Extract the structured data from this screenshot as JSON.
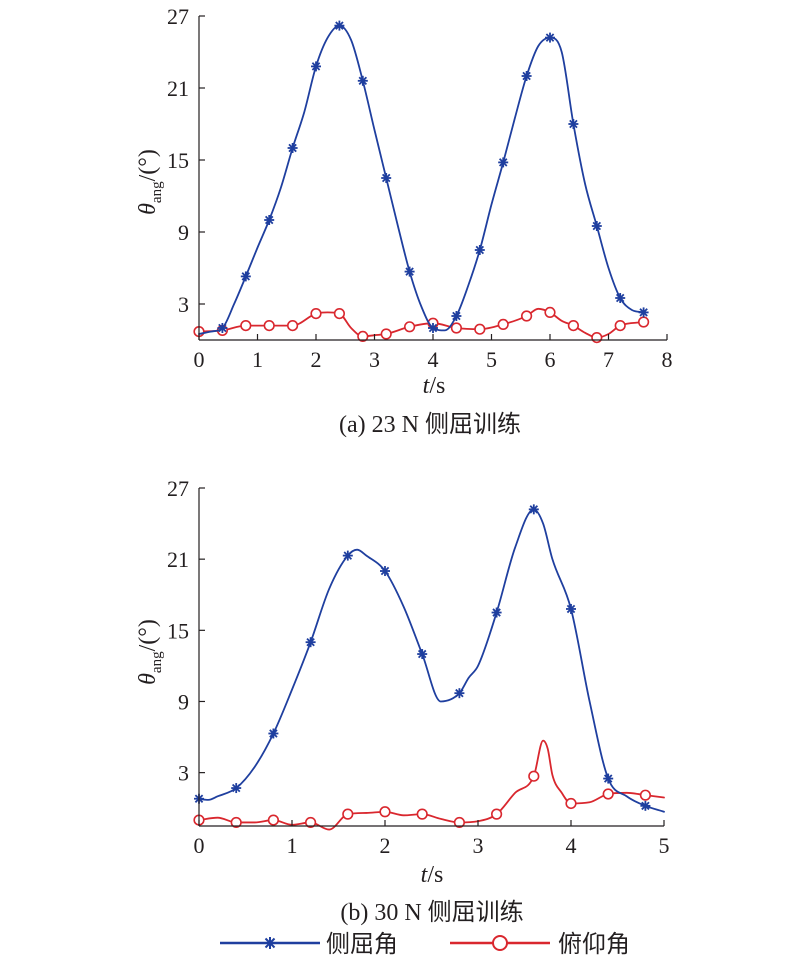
{
  "chart_data": [
    {
      "type": "line",
      "caption": "(a) 23 N 侧屈训练",
      "xlabel": "t",
      "xunit": "/s",
      "ylabel_symbol": "θ",
      "ylabel_sub": "ang",
      "ylabel_unit": "/(°)",
      "xlim": [
        0,
        8
      ],
      "ylim": [
        0,
        27
      ],
      "xticks": [
        0,
        1,
        2,
        3,
        4,
        5,
        6,
        7,
        8
      ],
      "yticks": [
        3,
        9,
        15,
        21,
        27
      ],
      "grid": false,
      "series": [
        {
          "name": "侧屈角",
          "color": "#1f3f9f",
          "marker": "asterisk",
          "x": [
            0,
            0.2,
            0.4,
            0.6,
            0.8,
            1.0,
            1.2,
            1.4,
            1.6,
            1.8,
            2.0,
            2.2,
            2.4,
            2.6,
            2.8,
            3.0,
            3.2,
            3.4,
            3.6,
            3.8,
            4.0,
            4.2,
            4.4,
            4.6,
            4.8,
            5.0,
            5.2,
            5.4,
            5.6,
            5.8,
            6.0,
            6.2,
            6.4,
            6.6,
            6.8,
            7.0,
            7.2,
            7.4,
            7.6
          ],
          "y": [
            0.5,
            0.7,
            1.0,
            3.0,
            5.3,
            7.7,
            10.0,
            12.7,
            16.0,
            19.0,
            22.8,
            25.2,
            26.2,
            25.0,
            21.6,
            17.5,
            13.5,
            9.5,
            5.7,
            2.8,
            1.0,
            0.8,
            2.0,
            4.5,
            7.5,
            11.3,
            14.8,
            18.5,
            22.0,
            24.5,
            25.2,
            24.0,
            18.0,
            13.0,
            9.5,
            6.0,
            3.5,
            2.5,
            2.3
          ],
          "marker_x": [
            0.4,
            0.8,
            1.2,
            1.6,
            2.0,
            2.4,
            2.8,
            3.2,
            3.6,
            4.0,
            4.4,
            4.8,
            5.2,
            5.6,
            6.0,
            6.4,
            6.8,
            7.2,
            7.6
          ],
          "marker_y": [
            1.0,
            5.3,
            10.0,
            16.0,
            22.8,
            26.2,
            21.6,
            13.5,
            5.7,
            1.0,
            2.0,
            7.5,
            14.8,
            22.0,
            25.2,
            18.0,
            9.5,
            3.5,
            2.3
          ]
        },
        {
          "name": "俯仰角",
          "color": "#d9272e",
          "marker": "circle",
          "x": [
            0,
            0.4,
            0.8,
            1.2,
            1.6,
            2.0,
            2.2,
            2.4,
            2.6,
            2.8,
            3.0,
            3.2,
            3.6,
            4.0,
            4.4,
            4.8,
            5.2,
            5.6,
            5.8,
            6.0,
            6.2,
            6.4,
            6.6,
            6.8,
            7.0,
            7.2,
            7.6
          ],
          "y": [
            0.7,
            0.8,
            1.2,
            1.2,
            1.2,
            2.2,
            2.3,
            2.2,
            1.0,
            0.3,
            0.4,
            0.5,
            1.1,
            1.4,
            1.0,
            0.9,
            1.3,
            2.0,
            2.6,
            2.3,
            1.6,
            1.2,
            0.6,
            0.2,
            0.5,
            1.2,
            1.5
          ],
          "marker_x": [
            0,
            0.4,
            0.8,
            1.2,
            1.6,
            2.0,
            2.4,
            2.8,
            3.2,
            3.6,
            4.0,
            4.4,
            4.8,
            5.2,
            5.6,
            6.0,
            6.4,
            6.8,
            7.2,
            7.6
          ],
          "marker_y": [
            0.7,
            0.8,
            1.2,
            1.2,
            1.2,
            2.2,
            2.2,
            0.3,
            0.5,
            1.1,
            1.4,
            1.0,
            0.9,
            1.3,
            2.0,
            2.3,
            1.2,
            0.2,
            1.2,
            1.5
          ]
        }
      ]
    },
    {
      "type": "line",
      "caption": "(b) 30 N 侧屈训练",
      "xlabel": "t",
      "xunit": "/s",
      "ylabel_symbol": "θ",
      "ylabel_sub": "ang",
      "ylabel_unit": "/(°)",
      "xlim": [
        0,
        5
      ],
      "ylim": [
        -1.5,
        27
      ],
      "xticks": [
        0,
        1,
        2,
        3,
        4,
        5
      ],
      "yticks": [
        3,
        9,
        15,
        21,
        27
      ],
      "grid": false,
      "series": [
        {
          "name": "侧屈角",
          "color": "#1f3f9f",
          "marker": "asterisk",
          "x": [
            0,
            0.1,
            0.2,
            0.4,
            0.6,
            0.8,
            1.0,
            1.2,
            1.4,
            1.6,
            1.7,
            1.8,
            2.0,
            2.2,
            2.4,
            2.6,
            2.8,
            2.9,
            3.0,
            3.2,
            3.4,
            3.6,
            3.7,
            3.8,
            4.0,
            4.2,
            4.4,
            4.6,
            4.8,
            5.0
          ],
          "y": [
            0.8,
            0.7,
            1.0,
            1.7,
            3.5,
            6.3,
            10.0,
            14.0,
            18.5,
            21.3,
            21.8,
            21.3,
            20.0,
            17.0,
            13.0,
            9.0,
            9.7,
            11.0,
            12.0,
            16.5,
            22.0,
            25.2,
            24.0,
            21.0,
            16.8,
            9.0,
            2.5,
            1.0,
            0.2,
            -0.3
          ],
          "marker_x": [
            0,
            0.4,
            0.8,
            1.2,
            1.6,
            2.0,
            2.4,
            2.8,
            3.2,
            3.6,
            4.0,
            4.4,
            4.8
          ],
          "marker_y": [
            0.8,
            1.7,
            6.3,
            14.0,
            21.3,
            20.0,
            13.0,
            9.7,
            16.5,
            25.2,
            16.8,
            2.5,
            0.2
          ]
        },
        {
          "name": "俯仰角",
          "color": "#d9272e",
          "marker": "circle",
          "x": [
            0,
            0.2,
            0.4,
            0.6,
            0.8,
            1.0,
            1.2,
            1.4,
            1.6,
            1.8,
            2.0,
            2.2,
            2.4,
            2.6,
            2.8,
            3.0,
            3.2,
            3.4,
            3.6,
            3.7,
            3.75,
            3.8,
            3.9,
            4.0,
            4.2,
            4.4,
            4.6,
            4.8,
            5.0
          ],
          "y": [
            -1.0,
            -0.8,
            -1.2,
            -1.2,
            -1.0,
            -1.4,
            -1.2,
            -1.8,
            -0.5,
            -0.4,
            -0.3,
            -0.6,
            -0.5,
            -0.9,
            -1.2,
            -1.1,
            -0.5,
            1.3,
            2.7,
            5.7,
            5.0,
            2.8,
            1.3,
            0.4,
            0.5,
            1.2,
            1.3,
            1.1,
            0.9
          ],
          "marker_x": [
            0,
            0.4,
            0.8,
            1.2,
            1.6,
            2.0,
            2.4,
            2.8,
            3.2,
            3.6,
            4.0,
            4.4,
            4.8
          ],
          "marker_y": [
            -1.0,
            -1.2,
            -1.0,
            -1.2,
            -0.5,
            -0.3,
            -0.5,
            -1.2,
            -0.5,
            2.7,
            0.4,
            1.2,
            1.1
          ]
        }
      ]
    }
  ],
  "legend": {
    "placement": "bottom-center",
    "entries": [
      {
        "label": "侧屈角",
        "color": "#1f3f9f",
        "marker": "asterisk"
      },
      {
        "label": "俯仰角",
        "color": "#d9272e",
        "marker": "circle"
      }
    ]
  }
}
